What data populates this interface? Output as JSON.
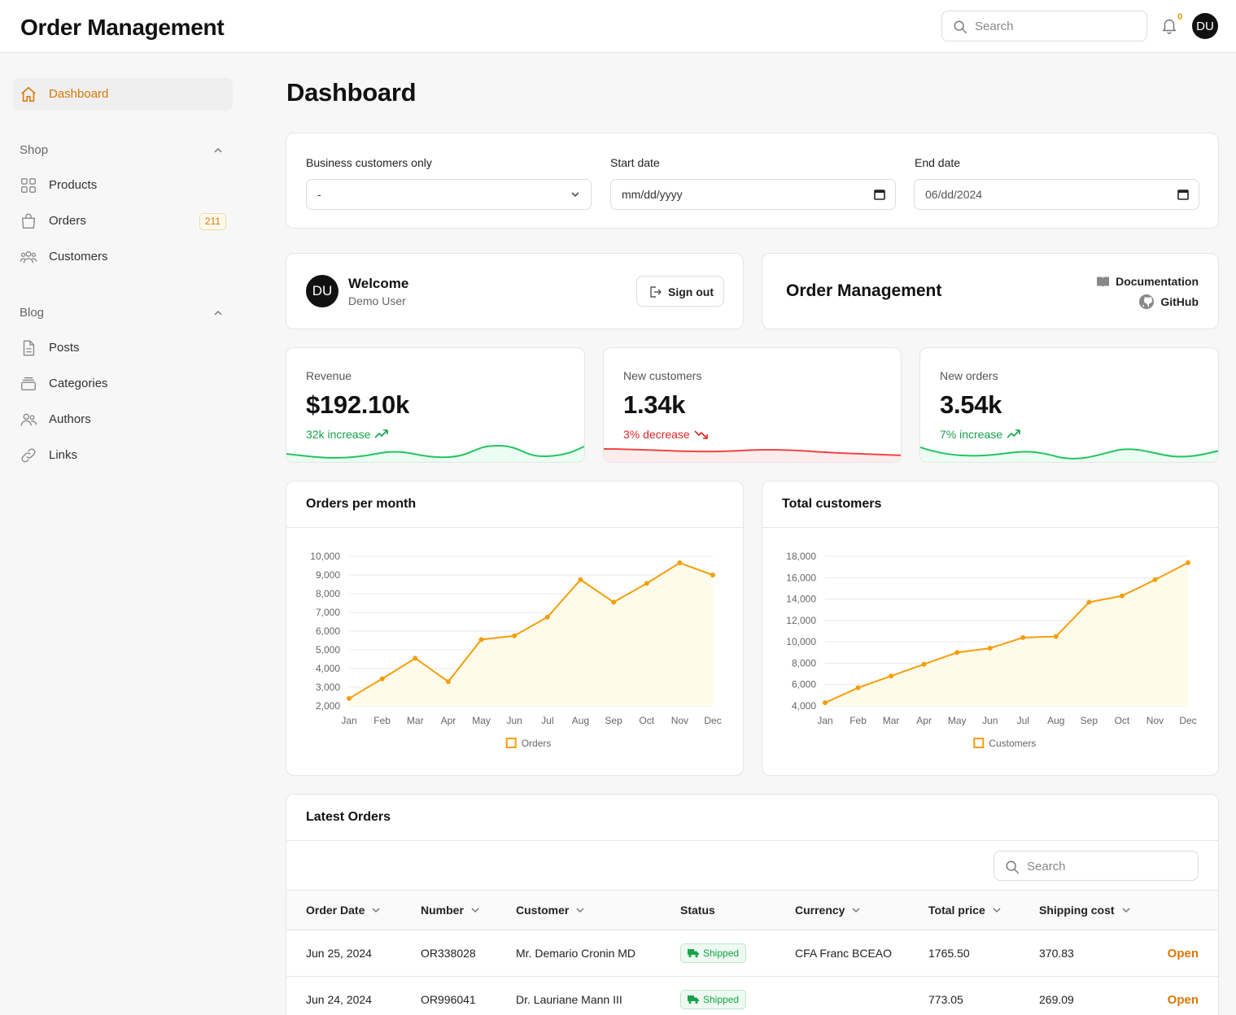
{
  "app": {
    "title": "Order Management"
  },
  "topbar": {
    "search_placeholder": "Search",
    "notif_count": "0",
    "avatar_initials": "DU"
  },
  "sidebar": {
    "dashboard": "Dashboard",
    "shop": {
      "label": "Shop",
      "items": [
        {
          "label": "Products"
        },
        {
          "label": "Orders",
          "badge": "211"
        },
        {
          "label": "Customers"
        }
      ]
    },
    "blog": {
      "label": "Blog",
      "items": [
        {
          "label": "Posts"
        },
        {
          "label": "Categories"
        },
        {
          "label": "Authors"
        },
        {
          "label": "Links"
        }
      ]
    }
  },
  "page": {
    "title": "Dashboard"
  },
  "filters": {
    "business": {
      "label": "Business customers only",
      "value": "-"
    },
    "start": {
      "label": "Start date",
      "value": "mm/dd/yyyy"
    },
    "end": {
      "label": "End date",
      "value": "06/dd/2024"
    }
  },
  "welcome": {
    "initials": "DU",
    "title": "Welcome",
    "user": "Demo User",
    "signout": "Sign out"
  },
  "brand": {
    "title": "Order Management",
    "docs": "Documentation",
    "github": "GitHub"
  },
  "stats": [
    {
      "label": "Revenue",
      "value": "$192.10k",
      "delta": "32k increase",
      "trend": "up",
      "color": "#22c55e"
    },
    {
      "label": "New customers",
      "value": "1.34k",
      "delta": "3% decrease",
      "trend": "down",
      "color": "#ef4444"
    },
    {
      "label": "New orders",
      "value": "3.54k",
      "delta": "7% increase",
      "trend": "up",
      "color": "#22c55e"
    }
  ],
  "chart_data": [
    {
      "type": "area",
      "title": "Orders per month",
      "categories": [
        "Jan",
        "Feb",
        "Mar",
        "Apr",
        "May",
        "Jun",
        "Jul",
        "Aug",
        "Sep",
        "Oct",
        "Nov",
        "Dec"
      ],
      "series": [
        {
          "name": "Orders",
          "values": [
            2400,
            3450,
            4550,
            3300,
            5550,
            5750,
            6750,
            8750,
            7550,
            8550,
            9650,
            9000
          ]
        }
      ],
      "ylim": [
        2000,
        10000
      ],
      "yticks": [
        2000,
        3000,
        4000,
        5000,
        6000,
        7000,
        8000,
        9000,
        10000
      ],
      "ytick_labels": [
        "2,000",
        "3,000",
        "4,000",
        "5,000",
        "6,000",
        "7,000",
        "8,000",
        "9,000",
        "10,000"
      ],
      "color": "#f59e0b",
      "fill": "#fffbea",
      "grid": true,
      "legend": "bottom"
    },
    {
      "type": "area",
      "title": "Total customers",
      "categories": [
        "Jan",
        "Feb",
        "Mar",
        "Apr",
        "May",
        "Jun",
        "Jul",
        "Aug",
        "Sep",
        "Oct",
        "Nov",
        "Dec"
      ],
      "series": [
        {
          "name": "Customers",
          "values": [
            4300,
            5700,
            6800,
            7900,
            9000,
            9400,
            10400,
            10500,
            13700,
            14300,
            15800,
            17400
          ]
        }
      ],
      "ylim": [
        4000,
        18000
      ],
      "yticks": [
        4000,
        6000,
        8000,
        10000,
        12000,
        14000,
        16000,
        18000
      ],
      "ytick_labels": [
        "4,000",
        "6,000",
        "8,000",
        "10,000",
        "12,000",
        "14,000",
        "16,000",
        "18,000"
      ],
      "color": "#f59e0b",
      "fill": "#fffbea",
      "grid": true,
      "legend": "bottom"
    }
  ],
  "orders": {
    "title": "Latest Orders",
    "search_placeholder": "Search",
    "columns": [
      "Order Date",
      "Number",
      "Customer",
      "Status",
      "Currency",
      "Total price",
      "Shipping cost"
    ],
    "open_label": "Open",
    "rows": [
      {
        "date": "Jun 25, 2024",
        "number": "OR338028",
        "customer": "Mr. Demario Cronin MD",
        "status": "Shipped",
        "currency": "CFA Franc BCEAO",
        "total": "1765.50",
        "shipping": "370.83"
      },
      {
        "date": "Jun 24, 2024",
        "number": "OR996041",
        "customer": "Dr. Lauriane Mann III",
        "status": "Shipped",
        "currency": "",
        "total": "773.05",
        "shipping": "269.09"
      }
    ]
  }
}
